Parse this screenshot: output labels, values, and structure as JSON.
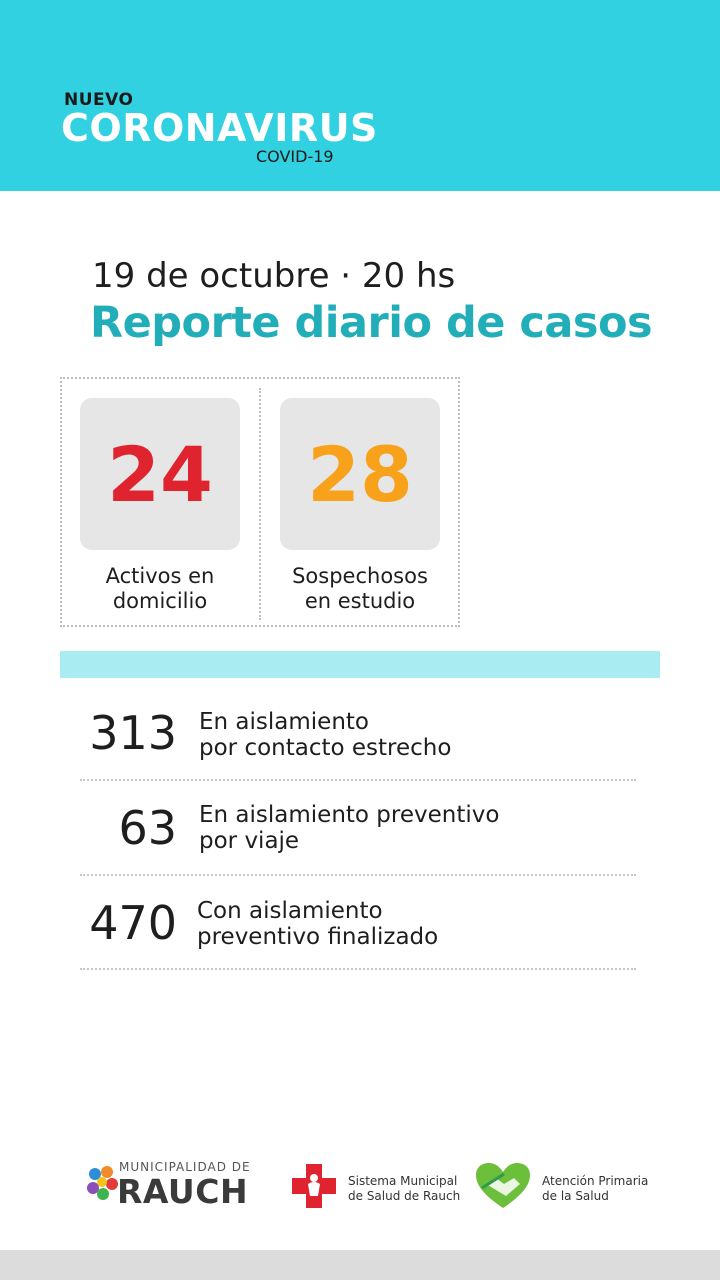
{
  "header": {
    "nuevo": "NUEVO",
    "title": "CORONAVIRUS",
    "subtitle": "COVID-19"
  },
  "report": {
    "date": "19 de octubre · 20 hs",
    "title": "Reporte diario de casos"
  },
  "stats": [
    {
      "value": "24",
      "label_line1": "Activos en",
      "label_line2": "domicilio",
      "color": "#e0242f"
    },
    {
      "value": "28",
      "label_line1": "Sospechosos",
      "label_line2": "en estudio",
      "color": "#f7a21a"
    }
  ],
  "isolation": [
    {
      "value": "313",
      "line1": "En aislamiento",
      "line2": "por contacto estrecho"
    },
    {
      "value": "63",
      "line1": "En aislamiento preventivo",
      "line2": "por viaje"
    },
    {
      "value": "470",
      "line1": "Con aislamiento",
      "line2": "preventivo finalizado"
    }
  ],
  "footer": {
    "municipality_top": "MUNICIPALIDAD DE",
    "municipality_name": "RAUCH",
    "health_system_line1": "Sistema Municipal",
    "health_system_line2": "de Salud de Rauch",
    "primary_care_line1": "Atención Primaria",
    "primary_care_line2": "de la Salud"
  },
  "colors": {
    "header_bg": "#31d1e1",
    "title_teal": "#22aeb9",
    "active_red": "#e0242f",
    "suspect_orange": "#f7a21a"
  }
}
